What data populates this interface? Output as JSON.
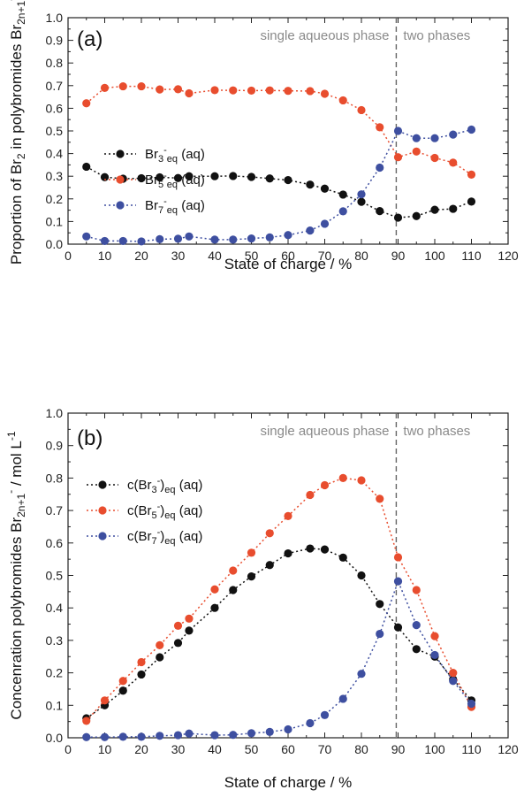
{
  "chart_data": [
    {
      "type": "line",
      "panel_label": "(a)",
      "xlabel": "State of charge / %",
      "ylabel_parts": [
        "Proportion of Br",
        "2",
        " in polybromides Br",
        "2n+1",
        "-"
      ],
      "xlim": [
        0,
        120
      ],
      "ylim": [
        0,
        1.0
      ],
      "xticks": [
        "0",
        "10",
        "20",
        "30",
        "40",
        "50",
        "60",
        "70",
        "80",
        "90",
        "100",
        "110",
        "120"
      ],
      "yticks": [
        "0.0",
        "0.1",
        "0.2",
        "0.3",
        "0.4",
        "0.5",
        "0.6",
        "0.7",
        "0.8",
        "0.9",
        "1.0"
      ],
      "legend_position": "center-left",
      "phase_boundary_x": 89.5,
      "region_labels": [
        "single aqueous phase",
        "two phases"
      ],
      "series": [
        {
          "legend": [
            "Br",
            "3",
            "-",
            "eq",
            " (aq)"
          ],
          "color": "#111111",
          "x": [
            5,
            10,
            15,
            20,
            25,
            30,
            33,
            40,
            45,
            50,
            55,
            60,
            66,
            70,
            75,
            80,
            85,
            90,
            95,
            100,
            105,
            110
          ],
          "y": [
            0.342,
            0.296,
            0.289,
            0.291,
            0.295,
            0.292,
            0.3,
            0.3,
            0.301,
            0.297,
            0.29,
            0.283,
            0.263,
            0.245,
            0.219,
            0.187,
            0.146,
            0.117,
            0.124,
            0.152,
            0.156,
            0.188
          ]
        },
        {
          "legend": [
            "Br",
            "5",
            "-",
            "eq",
            " (aq)"
          ],
          "color": "#e84d2e",
          "x": [
            5,
            10,
            15,
            20,
            25,
            30,
            33,
            40,
            45,
            50,
            55,
            60,
            66,
            70,
            75,
            80,
            85,
            90,
            95,
            100,
            105,
            110
          ],
          "y": [
            0.622,
            0.69,
            0.697,
            0.697,
            0.683,
            0.684,
            0.666,
            0.68,
            0.679,
            0.678,
            0.679,
            0.677,
            0.676,
            0.664,
            0.635,
            0.592,
            0.516,
            0.384,
            0.409,
            0.381,
            0.36,
            0.307
          ]
        },
        {
          "legend": [
            "Br",
            "7",
            "-",
            "eq",
            " (aq)"
          ],
          "color": "#3e4fa0",
          "x": [
            5,
            10,
            15,
            20,
            25,
            30,
            33,
            40,
            45,
            50,
            55,
            60,
            66,
            70,
            75,
            80,
            85,
            90,
            95,
            100,
            105,
            110
          ],
          "y": [
            0.034,
            0.014,
            0.014,
            0.012,
            0.022,
            0.024,
            0.034,
            0.02,
            0.02,
            0.025,
            0.03,
            0.04,
            0.06,
            0.09,
            0.145,
            0.22,
            0.338,
            0.5,
            0.468,
            0.468,
            0.484,
            0.506
          ]
        }
      ]
    },
    {
      "type": "line",
      "panel_label": "(b)",
      "xlabel": "State of charge / %",
      "ylabel_parts": [
        "Concenration polybromides Br",
        "2n+1",
        "-",
        " / mol L",
        "-1"
      ],
      "xlim": [
        0,
        120
      ],
      "ylim": [
        0,
        1.0
      ],
      "xticks": [
        "0",
        "10",
        "20",
        "30",
        "40",
        "50",
        "60",
        "70",
        "80",
        "90",
        "100",
        "110",
        "120"
      ],
      "yticks": [
        "0.0",
        "0.1",
        "0.2",
        "0.3",
        "0.4",
        "0.5",
        "0.6",
        "0.7",
        "0.8",
        "0.9",
        "1.0"
      ],
      "legend_position": "top-left",
      "phase_boundary_x": 89.5,
      "region_labels": [
        "single aqueous phase",
        "two phases"
      ],
      "series": [
        {
          "legend": [
            "c(Br",
            "3",
            "-",
            ")",
            "eq",
            " (aq)"
          ],
          "color": "#111111",
          "x": [
            5,
            10,
            15,
            20,
            25,
            30,
            33,
            40,
            45,
            50,
            55,
            60,
            66,
            70,
            75,
            80,
            85,
            90,
            95,
            100,
            105,
            110
          ],
          "y": [
            0.06,
            0.1,
            0.145,
            0.195,
            0.248,
            0.292,
            0.33,
            0.4,
            0.455,
            0.497,
            0.532,
            0.568,
            0.583,
            0.58,
            0.555,
            0.5,
            0.412,
            0.34,
            0.273,
            0.25,
            0.18,
            0.115
          ]
        },
        {
          "legend": [
            "c(Br",
            "5",
            "-",
            ")",
            "eq",
            " (aq)"
          ],
          "color": "#e84d2e",
          "x": [
            5,
            10,
            15,
            20,
            25,
            30,
            33,
            40,
            45,
            50,
            55,
            60,
            66,
            70,
            75,
            80,
            85,
            90,
            95,
            100,
            105,
            110
          ],
          "y": [
            0.052,
            0.115,
            0.175,
            0.233,
            0.285,
            0.345,
            0.367,
            0.457,
            0.515,
            0.57,
            0.63,
            0.683,
            0.748,
            0.778,
            0.8,
            0.793,
            0.736,
            0.556,
            0.455,
            0.313,
            0.2,
            0.095
          ]
        },
        {
          "legend": [
            "c(Br",
            "7",
            "-",
            ")",
            "eq",
            " (aq)"
          ],
          "color": "#3e4fa0",
          "x": [
            5,
            10,
            15,
            20,
            25,
            30,
            33,
            40,
            45,
            50,
            55,
            60,
            66,
            70,
            75,
            80,
            85,
            90,
            95,
            100,
            105,
            110
          ],
          "y": [
            0.002,
            0.002,
            0.003,
            0.003,
            0.006,
            0.008,
            0.013,
            0.008,
            0.009,
            0.014,
            0.018,
            0.026,
            0.045,
            0.07,
            0.12,
            0.197,
            0.32,
            0.482,
            0.347,
            0.255,
            0.175,
            0.105
          ]
        }
      ]
    }
  ]
}
